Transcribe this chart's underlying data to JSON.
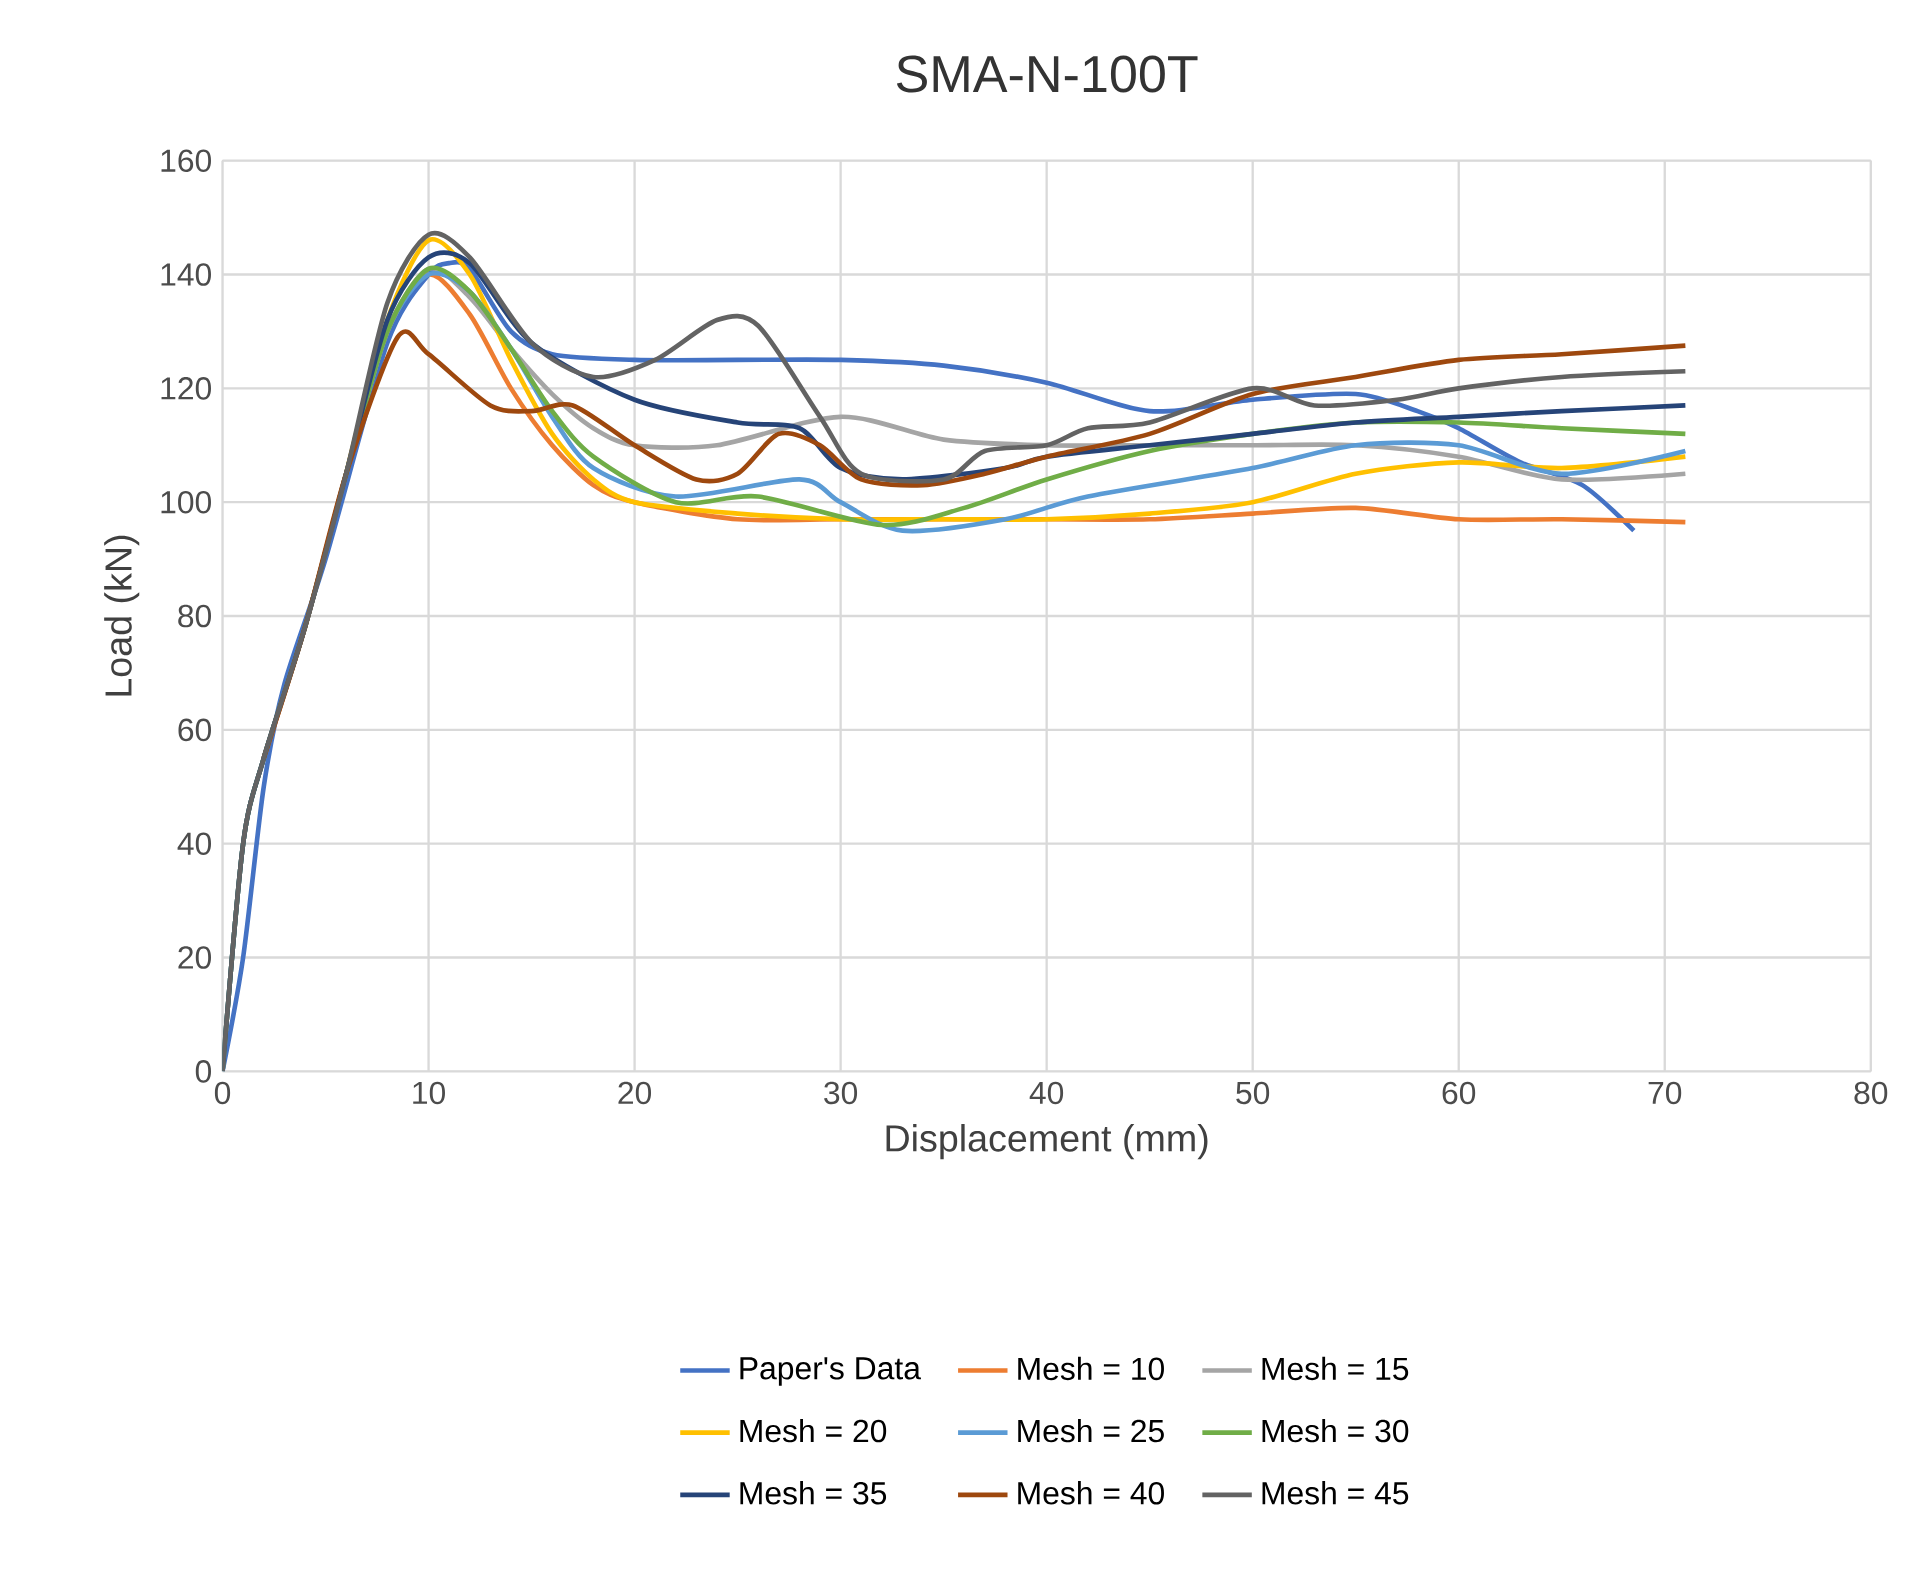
{
  "chart_data": {
    "type": "line",
    "title": "SMA-N-100T",
    "xlabel": "Displacement (mm)",
    "ylabel": "Load (kN)",
    "xlim": [
      0,
      80
    ],
    "ylim": [
      0,
      160
    ],
    "xticks": [
      0,
      10,
      20,
      30,
      40,
      50,
      60,
      70,
      80
    ],
    "yticks": [
      0,
      20,
      40,
      60,
      80,
      100,
      120,
      140,
      160
    ],
    "grid": true,
    "legend": "bottom",
    "marker": "none",
    "line_style": "solid",
    "series": [
      {
        "name": "Paper's Data",
        "color": "#4472c4",
        "x": [
          0,
          1,
          2,
          3,
          5,
          8,
          10,
          11,
          12,
          14,
          16,
          20,
          25,
          30,
          35,
          40,
          45,
          50,
          55,
          58,
          60,
          63,
          66,
          68.5
        ],
        "values": [
          0,
          20,
          50,
          68,
          90,
          128,
          140,
          142,
          141,
          130,
          126,
          125,
          125,
          125,
          124,
          121,
          116,
          118,
          119,
          116,
          113,
          107,
          103,
          95
        ]
      },
      {
        "name": "Mesh = 10",
        "color": "#ed7d31",
        "x": [
          2,
          4,
          6,
          8,
          10,
          12,
          14,
          16,
          18,
          20,
          25,
          30,
          35,
          40,
          45,
          50,
          55,
          60,
          65,
          71
        ],
        "values": [
          55,
          78,
          105,
          130,
          140,
          133,
          120,
          110,
          103,
          100,
          97,
          97,
          97,
          97,
          97,
          98,
          99,
          97,
          97,
          96.5
        ]
      },
      {
        "name": "Mesh = 15",
        "color": "#a5a5a5",
        "x": [
          0,
          1,
          2,
          4,
          6,
          8,
          10,
          12,
          14,
          16,
          18,
          20,
          24,
          30,
          35,
          40,
          45,
          50,
          55,
          60,
          65,
          71
        ],
        "values": [
          0,
          40,
          55,
          78,
          105,
          130,
          141,
          136,
          127,
          119,
          113,
          110,
          110,
          115,
          111,
          110,
          110,
          110,
          110,
          108,
          104,
          105
        ]
      },
      {
        "name": "Mesh = 20",
        "color": "#ffc000",
        "x": [
          6,
          8,
          10,
          12,
          14,
          16,
          18,
          20,
          25,
          30,
          35,
          40,
          45,
          50,
          55,
          60,
          65,
          71
        ],
        "values": [
          105,
          132,
          146,
          140,
          125,
          112,
          104,
          100,
          98,
          97,
          97,
          97,
          98,
          100,
          105,
          107,
          106,
          108
        ]
      },
      {
        "name": "Mesh = 25",
        "color": "#5b9bd5",
        "x": [
          0,
          1,
          2,
          4,
          6,
          8,
          10,
          12,
          14,
          16,
          18,
          22,
          28,
          30,
          33,
          38,
          42,
          50,
          55,
          60,
          65,
          71
        ],
        "values": [
          0,
          40,
          55,
          78,
          105,
          130,
          140,
          137,
          127,
          115,
          106,
          101,
          104,
          100,
          95,
          97,
          101,
          106,
          110,
          110,
          105,
          109
        ]
      },
      {
        "name": "Mesh = 30",
        "color": "#70ad47",
        "x": [
          0,
          1,
          2,
          4,
          6,
          8,
          10,
          12,
          14,
          16,
          18,
          22,
          26,
          32,
          36,
          40,
          45,
          50,
          55,
          60,
          65,
          71
        ],
        "values": [
          0,
          40,
          55,
          78,
          105,
          130,
          141,
          137,
          127,
          116,
          108,
          100,
          101,
          96,
          99,
          104,
          109,
          112,
          114,
          114,
          113,
          112
        ]
      },
      {
        "name": "Mesh = 35",
        "color": "#264478",
        "x": [
          0,
          1,
          2,
          4,
          6,
          8,
          10,
          12,
          15,
          20,
          25,
          28,
          30,
          33,
          38,
          40,
          45,
          50,
          55,
          60,
          65,
          71
        ],
        "values": [
          0,
          40,
          55,
          78,
          105,
          132,
          143,
          142,
          128,
          118,
          114,
          113,
          106,
          104,
          106,
          108,
          110,
          112,
          114,
          115,
          116,
          117
        ]
      },
      {
        "name": "Mesh = 40",
        "color": "#9e480e",
        "x": [
          2,
          4,
          6,
          8.5,
          10,
          13,
          15,
          17,
          20,
          23,
          25,
          27,
          29,
          31,
          34,
          37,
          40,
          45,
          50,
          55,
          60,
          65,
          71
        ],
        "values": [
          55,
          78,
          105,
          129,
          126,
          117,
          116,
          117,
          110,
          104,
          105,
          112,
          110,
          104,
          103,
          105,
          108,
          112,
          119,
          122,
          125,
          126,
          127.5
        ]
      },
      {
        "name": "Mesh = 45",
        "color": "#636363",
        "x": [
          0,
          1,
          2,
          4,
          6,
          8,
          10,
          12,
          15,
          18,
          21,
          24,
          26,
          29,
          31,
          35,
          37,
          40,
          42,
          45,
          50,
          53,
          57,
          60,
          65,
          71
        ],
        "values": [
          0,
          40,
          55,
          78,
          105,
          135,
          147,
          143,
          128,
          122,
          125,
          132,
          131,
          115,
          105,
          104,
          109,
          110,
          113,
          114,
          120,
          117,
          118,
          120,
          122,
          123
        ]
      }
    ]
  }
}
